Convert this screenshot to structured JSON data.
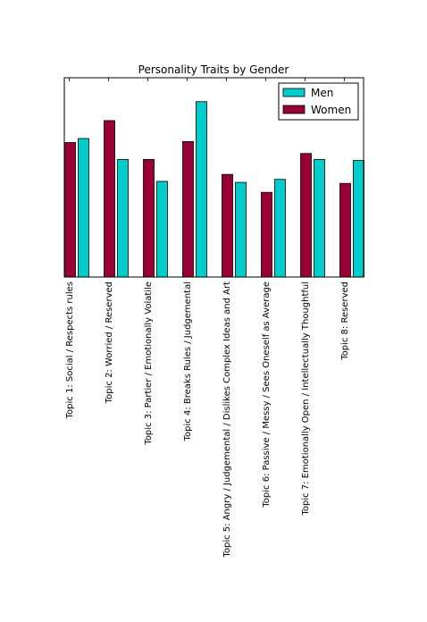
{
  "chart_data": {
    "type": "bar",
    "title": "Personality Traits by Gender",
    "xlabel": "",
    "ylabel": "",
    "ylim": [
      0,
      1
    ],
    "grid": false,
    "legend_position": "top-right",
    "categories": [
      "Topic 1: Social / Respects rules",
      "Topic 2: Worried / Reserved",
      "Topic 3: Partier / Emotionally Volatile",
      "Topic 4: Breaks Rules / Judgemental",
      "Topic 5: Angry / Judgemental / Dislikes Complex Ideas and Art",
      "Topic 6: Passive / Messy / Sees Oneself as Average",
      "Topic 7: Emotionally Open / Intellectually Thoughtful",
      "Topic 8: Reserved"
    ],
    "series": [
      {
        "name": "Women",
        "color": "#990033",
        "values": [
          0.675,
          0.785,
          0.59,
          0.68,
          0.515,
          0.425,
          0.62,
          0.47
        ]
      },
      {
        "name": "Men",
        "color": "#00cccc",
        "values": [
          0.695,
          0.59,
          0.48,
          0.88,
          0.475,
          0.49,
          0.59,
          0.585
        ]
      }
    ]
  }
}
